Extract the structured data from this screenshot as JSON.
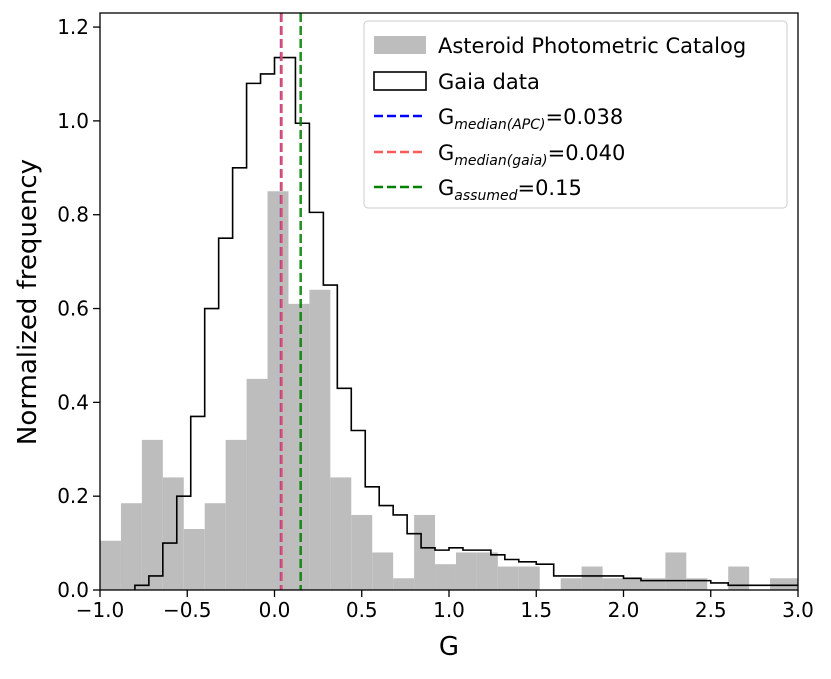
{
  "chart_data": {
    "type": "bar",
    "title": "",
    "xlabel": "G",
    "ylabel": "Normalized frequency",
    "xlim": [
      -1.0,
      3.0
    ],
    "ylim": [
      0.0,
      1.23
    ],
    "grid": false,
    "legend_position": "top-right",
    "x_ticks": [
      {
        "value": -1.0,
        "label": "−1.0"
      },
      {
        "value": -0.5,
        "label": "−0.5"
      },
      {
        "value": 0.0,
        "label": "0.0"
      },
      {
        "value": 0.5,
        "label": "0.5"
      },
      {
        "value": 1.0,
        "label": "1.0"
      },
      {
        "value": 1.5,
        "label": "1.5"
      },
      {
        "value": 2.0,
        "label": "2.0"
      },
      {
        "value": 2.5,
        "label": "2.5"
      },
      {
        "value": 3.0,
        "label": "3.0"
      }
    ],
    "y_ticks": [
      {
        "value": 0.0,
        "label": "0.0"
      },
      {
        "value": 0.2,
        "label": "0.2"
      },
      {
        "value": 0.4,
        "label": "0.4"
      },
      {
        "value": 0.6,
        "label": "0.6"
      },
      {
        "value": 0.8,
        "label": "0.8"
      },
      {
        "value": 1.0,
        "label": "1.0"
      },
      {
        "value": 1.2,
        "label": "1.2"
      }
    ],
    "series": [
      {
        "name": "Asteroid Photometric Catalog",
        "kind": "filled-histogram",
        "color": "#bdbdbd",
        "bin_edges": [
          -1.0,
          -0.88,
          -0.76,
          -0.64,
          -0.52,
          -0.4,
          -0.28,
          -0.16,
          -0.04,
          0.08,
          0.2,
          0.32,
          0.44,
          0.56,
          0.68,
          0.8,
          0.92,
          1.04,
          1.16,
          1.28,
          1.4,
          1.52,
          1.64,
          1.76,
          1.88,
          2.0,
          2.12,
          2.24,
          2.36,
          2.48,
          2.6,
          2.72,
          2.84,
          3.0
        ],
        "values": [
          0.105,
          0.185,
          0.32,
          0.24,
          0.13,
          0.185,
          0.32,
          0.45,
          0.85,
          0.61,
          0.64,
          0.24,
          0.16,
          0.08,
          0.025,
          0.16,
          0.055,
          0.08,
          0.08,
          0.05,
          0.05,
          0.0,
          0.025,
          0.05,
          0.025,
          0.025,
          0.025,
          0.08,
          0.025,
          0.0,
          0.05,
          0.0,
          0.025
        ]
      },
      {
        "name": "Gaia data",
        "kind": "step-histogram",
        "color": "#000000",
        "bin_edges": [
          -0.8,
          -0.72,
          -0.64,
          -0.56,
          -0.48,
          -0.4,
          -0.32,
          -0.24,
          -0.16,
          -0.08,
          0.0,
          0.08,
          0.12,
          0.16,
          0.2,
          0.28,
          0.36,
          0.44,
          0.52,
          0.6,
          0.68,
          0.76,
          0.84,
          0.92,
          1.0,
          1.08,
          1.16,
          1.24,
          1.32,
          1.4,
          1.5,
          1.6,
          1.7,
          1.8,
          1.9,
          2.0,
          2.1,
          2.2,
          2.3,
          2.4,
          2.5,
          2.6,
          2.7,
          2.8,
          2.9,
          3.0
        ],
        "values": [
          0.01,
          0.03,
          0.1,
          0.2,
          0.37,
          0.6,
          0.75,
          0.9,
          1.08,
          1.1,
          1.135,
          1.135,
          0.995,
          0.995,
          0.805,
          0.65,
          0.43,
          0.34,
          0.22,
          0.18,
          0.16,
          0.12,
          0.09,
          0.085,
          0.09,
          0.085,
          0.085,
          0.075,
          0.065,
          0.06,
          0.055,
          0.03,
          0.03,
          0.03,
          0.03,
          0.025,
          0.02,
          0.02,
          0.02,
          0.02,
          0.015,
          0.01,
          0.01,
          0.01,
          0.01
        ]
      }
    ],
    "vlines": [
      {
        "name": "G_median(APC)",
        "x": 0.038,
        "color": "#0000ff",
        "style": "dashed"
      },
      {
        "name": "G_median(gaia)",
        "x": 0.04,
        "color": "#ff5a5a",
        "style": "dashed"
      },
      {
        "name": "G_assumed",
        "x": 0.15,
        "color": "#008000",
        "style": "dashed"
      }
    ],
    "legend": [
      {
        "kind": "patch",
        "color": "#bdbdbd",
        "base": "Asteroid Photometric Catalog",
        "sub": "",
        "tail": ""
      },
      {
        "kind": "step",
        "color": "#000000",
        "base": "Gaia data",
        "sub": "",
        "tail": ""
      },
      {
        "kind": "dash",
        "color": "#0000ff",
        "base": "G",
        "sub": "median(APC)",
        "tail": "=0.038"
      },
      {
        "kind": "dash",
        "color": "#ff5a5a",
        "base": "G",
        "sub": "median(gaia)",
        "tail": "=0.040"
      },
      {
        "kind": "dash",
        "color": "#008000",
        "base": "G",
        "sub": "assumed",
        "tail": "=0.15"
      }
    ]
  }
}
